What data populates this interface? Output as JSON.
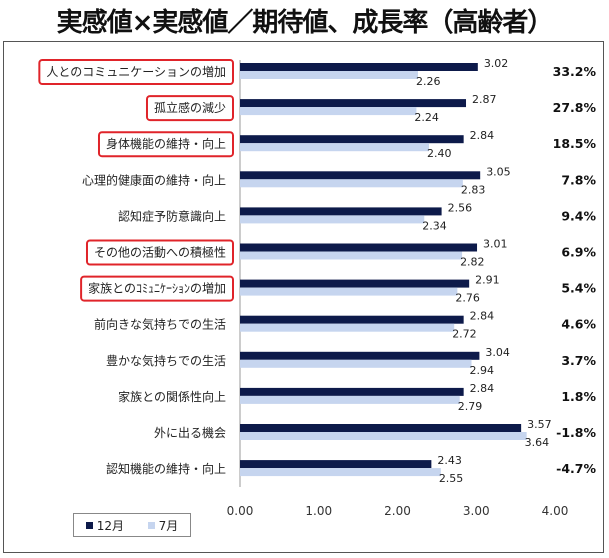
{
  "title": "実感値×実感値／期待値、成長率（高齢者）",
  "colors": {
    "december": "#0d1a4a",
    "july": "#c6d5ef",
    "highlight": "#e0242a"
  },
  "chart_data": {
    "type": "bar",
    "orientation": "horizontal",
    "categories": [
      "人とのコミュニケーションの増加",
      "孤立感の減少",
      "身体機能の維持・向上",
      "心理的健康面の維持・向上",
      "認知症予防意識向上",
      "その他の活動への積極性",
      "家族とのｺﾐｭﾆｹｰｼｮﾝの増加",
      "前向きな気持ちでの生活",
      "豊かな気持ちでの生活",
      "家族との関係性向上",
      "外に出る機会",
      "認知機能の維持・向上"
    ],
    "highlighted": [
      true,
      true,
      true,
      false,
      false,
      true,
      true,
      false,
      false,
      false,
      false,
      false
    ],
    "series": [
      {
        "name": "12月",
        "values": [
          3.02,
          2.87,
          2.84,
          3.05,
          2.56,
          3.01,
          2.91,
          2.84,
          3.04,
          2.84,
          3.57,
          2.43
        ]
      },
      {
        "name": "7月",
        "values": [
          2.26,
          2.24,
          2.4,
          2.83,
          2.34,
          2.82,
          2.76,
          2.72,
          2.94,
          2.79,
          3.64,
          2.55
        ]
      }
    ],
    "growth_rates": [
      "33.2%",
      "27.8%",
      "18.5%",
      "7.8%",
      "9.4%",
      "6.9%",
      "5.4%",
      "4.6%",
      "3.7%",
      "1.8%",
      "-1.8%",
      "-4.7%"
    ],
    "x_ticks": [
      "0.00",
      "1.00",
      "2.00",
      "3.00",
      "4.00"
    ],
    "xlim": [
      0,
      4
    ],
    "legend_position": "bottom-left",
    "grid": false
  }
}
